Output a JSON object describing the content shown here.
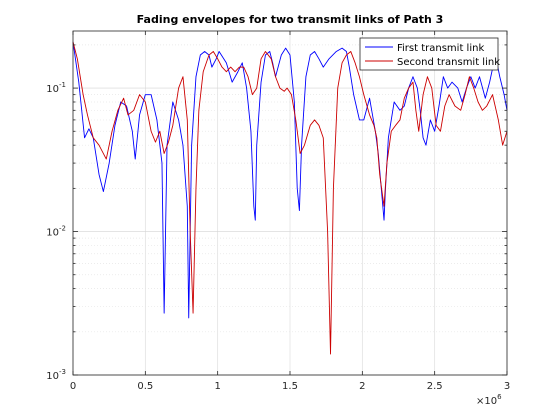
{
  "chart_data": {
    "type": "line",
    "title": "Fading envelopes for two transmit links of Path 3",
    "xlabel": "",
    "ylabel": "",
    "xlim": [
      0,
      3000000
    ],
    "ylim": [
      0.001,
      0.25
    ],
    "x_scale": "linear",
    "y_scale": "log",
    "x_multiplier": "×10",
    "x_multiplier_exponent": "6",
    "grid": true,
    "legend_position": "top-right",
    "x_ticks": [
      0,
      500000,
      1000000,
      1500000,
      2000000,
      2500000,
      3000000
    ],
    "x_tick_labels": [
      "0",
      "0.5",
      "1",
      "1.5",
      "2",
      "2.5",
      "3"
    ],
    "y_ticks": [
      0.001,
      0.01,
      0.1
    ],
    "y_tick_labels": [
      {
        "base": "10",
        "exp": "-3"
      },
      {
        "base": "10",
        "exp": "-2"
      },
      {
        "base": "10",
        "exp": "-1"
      }
    ],
    "series": [
      {
        "name": "First transmit link",
        "color": "#0000ff",
        "points": [
          [
            0,
            0.21
          ],
          [
            40000,
            0.11
          ],
          [
            80000,
            0.045
          ],
          [
            110000,
            0.052
          ],
          [
            140000,
            0.045
          ],
          [
            180000,
            0.025
          ],
          [
            210000,
            0.019
          ],
          [
            250000,
            0.03
          ],
          [
            290000,
            0.055
          ],
          [
            330000,
            0.08
          ],
          [
            370000,
            0.075
          ],
          [
            410000,
            0.05
          ],
          [
            430000,
            0.032
          ],
          [
            460000,
            0.065
          ],
          [
            500000,
            0.09
          ],
          [
            540000,
            0.09
          ],
          [
            580000,
            0.06
          ],
          [
            615000,
            0.03
          ],
          [
            630000,
            0.0027
          ],
          [
            650000,
            0.04
          ],
          [
            690000,
            0.08
          ],
          [
            730000,
            0.06
          ],
          [
            760000,
            0.04
          ],
          [
            790000,
            0.015
          ],
          [
            800000,
            0.0025
          ],
          [
            820000,
            0.04
          ],
          [
            850000,
            0.12
          ],
          [
            880000,
            0.17
          ],
          [
            910000,
            0.18
          ],
          [
            940000,
            0.17
          ],
          [
            960000,
            0.14
          ],
          [
            990000,
            0.16
          ],
          [
            1010000,
            0.18
          ],
          [
            1060000,
            0.15
          ],
          [
            1100000,
            0.11
          ],
          [
            1140000,
            0.13
          ],
          [
            1170000,
            0.15
          ],
          [
            1200000,
            0.1
          ],
          [
            1230000,
            0.05
          ],
          [
            1250000,
            0.015
          ],
          [
            1260000,
            0.012
          ],
          [
            1270000,
            0.04
          ],
          [
            1300000,
            0.11
          ],
          [
            1330000,
            0.17
          ],
          [
            1360000,
            0.18
          ],
          [
            1380000,
            0.15
          ],
          [
            1400000,
            0.12
          ],
          [
            1440000,
            0.17
          ],
          [
            1470000,
            0.19
          ],
          [
            1500000,
            0.17
          ],
          [
            1530000,
            0.08
          ],
          [
            1550000,
            0.02
          ],
          [
            1565000,
            0.014
          ],
          [
            1580000,
            0.04
          ],
          [
            1610000,
            0.12
          ],
          [
            1640000,
            0.17
          ],
          [
            1670000,
            0.18
          ],
          [
            1700000,
            0.16
          ],
          [
            1730000,
            0.14
          ],
          [
            1770000,
            0.16
          ],
          [
            1820000,
            0.18
          ],
          [
            1860000,
            0.19
          ],
          [
            1890000,
            0.18
          ],
          [
            1910000,
            0.14
          ],
          [
            1940000,
            0.09
          ],
          [
            1980000,
            0.06
          ],
          [
            2010000,
            0.06
          ],
          [
            2050000,
            0.085
          ],
          [
            2090000,
            0.05
          ],
          [
            2110000,
            0.035
          ],
          [
            2150000,
            0.012
          ],
          [
            2160000,
            0.02
          ],
          [
            2180000,
            0.045
          ],
          [
            2220000,
            0.08
          ],
          [
            2260000,
            0.07
          ],
          [
            2290000,
            0.075
          ],
          [
            2320000,
            0.1
          ],
          [
            2350000,
            0.12
          ],
          [
            2380000,
            0.1
          ],
          [
            2400000,
            0.07
          ],
          [
            2420000,
            0.045
          ],
          [
            2440000,
            0.04
          ],
          [
            2470000,
            0.06
          ],
          [
            2500000,
            0.05
          ],
          [
            2530000,
            0.075
          ],
          [
            2560000,
            0.12
          ],
          [
            2590000,
            0.1
          ],
          [
            2620000,
            0.11
          ],
          [
            2660000,
            0.1
          ],
          [
            2690000,
            0.08
          ],
          [
            2720000,
            0.1
          ],
          [
            2750000,
            0.12
          ],
          [
            2780000,
            0.1
          ],
          [
            2810000,
            0.12
          ],
          [
            2850000,
            0.085
          ],
          [
            2880000,
            0.11
          ],
          [
            2920000,
            0.17
          ],
          [
            2950000,
            0.12
          ],
          [
            2980000,
            0.09
          ],
          [
            3000000,
            0.07
          ]
        ]
      },
      {
        "name": "Second transmit link",
        "color": "#cc0000",
        "points": [
          [
            0,
            0.21
          ],
          [
            30000,
            0.16
          ],
          [
            70000,
            0.09
          ],
          [
            100000,
            0.065
          ],
          [
            140000,
            0.045
          ],
          [
            180000,
            0.04
          ],
          [
            230000,
            0.032
          ],
          [
            270000,
            0.05
          ],
          [
            310000,
            0.07
          ],
          [
            350000,
            0.085
          ],
          [
            380000,
            0.065
          ],
          [
            420000,
            0.07
          ],
          [
            460000,
            0.09
          ],
          [
            500000,
            0.08
          ],
          [
            540000,
            0.05
          ],
          [
            570000,
            0.042
          ],
          [
            600000,
            0.05
          ],
          [
            630000,
            0.035
          ],
          [
            660000,
            0.042
          ],
          [
            690000,
            0.055
          ],
          [
            730000,
            0.1
          ],
          [
            760000,
            0.12
          ],
          [
            790000,
            0.06
          ],
          [
            810000,
            0.01
          ],
          [
            830000,
            0.0027
          ],
          [
            850000,
            0.02
          ],
          [
            870000,
            0.07
          ],
          [
            900000,
            0.13
          ],
          [
            940000,
            0.17
          ],
          [
            970000,
            0.18
          ],
          [
            1000000,
            0.16
          ],
          [
            1030000,
            0.14
          ],
          [
            1060000,
            0.13
          ],
          [
            1090000,
            0.14
          ],
          [
            1120000,
            0.13
          ],
          [
            1150000,
            0.14
          ],
          [
            1180000,
            0.14
          ],
          [
            1210000,
            0.12
          ],
          [
            1240000,
            0.09
          ],
          [
            1270000,
            0.1
          ],
          [
            1300000,
            0.16
          ],
          [
            1330000,
            0.18
          ],
          [
            1370000,
            0.16
          ],
          [
            1400000,
            0.12
          ],
          [
            1430000,
            0.1
          ],
          [
            1460000,
            0.095
          ],
          [
            1480000,
            0.1
          ],
          [
            1510000,
            0.09
          ],
          [
            1540000,
            0.06
          ],
          [
            1570000,
            0.035
          ],
          [
            1600000,
            0.04
          ],
          [
            1640000,
            0.055
          ],
          [
            1670000,
            0.06
          ],
          [
            1700000,
            0.055
          ],
          [
            1730000,
            0.045
          ],
          [
            1760000,
            0.01
          ],
          [
            1780000,
            0.0014
          ],
          [
            1800000,
            0.02
          ],
          [
            1830000,
            0.1
          ],
          [
            1860000,
            0.15
          ],
          [
            1890000,
            0.17
          ],
          [
            1920000,
            0.18
          ],
          [
            1950000,
            0.15
          ],
          [
            1980000,
            0.12
          ],
          [
            2010000,
            0.09
          ],
          [
            2050000,
            0.065
          ],
          [
            2080000,
            0.055
          ],
          [
            2100000,
            0.045
          ],
          [
            2120000,
            0.025
          ],
          [
            2150000,
            0.015
          ],
          [
            2170000,
            0.03
          ],
          [
            2200000,
            0.05
          ],
          [
            2230000,
            0.055
          ],
          [
            2260000,
            0.06
          ],
          [
            2290000,
            0.085
          ],
          [
            2320000,
            0.1
          ],
          [
            2350000,
            0.11
          ],
          [
            2370000,
            0.07
          ],
          [
            2390000,
            0.05
          ],
          [
            2420000,
            0.09
          ],
          [
            2450000,
            0.12
          ],
          [
            2480000,
            0.1
          ],
          [
            2510000,
            0.055
          ],
          [
            2540000,
            0.05
          ],
          [
            2570000,
            0.075
          ],
          [
            2600000,
            0.09
          ],
          [
            2640000,
            0.075
          ],
          [
            2680000,
            0.07
          ],
          [
            2710000,
            0.09
          ],
          [
            2740000,
            0.12
          ],
          [
            2770000,
            0.1
          ],
          [
            2800000,
            0.08
          ],
          [
            2830000,
            0.07
          ],
          [
            2860000,
            0.075
          ],
          [
            2900000,
            0.09
          ],
          [
            2940000,
            0.06
          ],
          [
            2970000,
            0.04
          ],
          [
            3000000,
            0.05
          ]
        ]
      }
    ]
  }
}
